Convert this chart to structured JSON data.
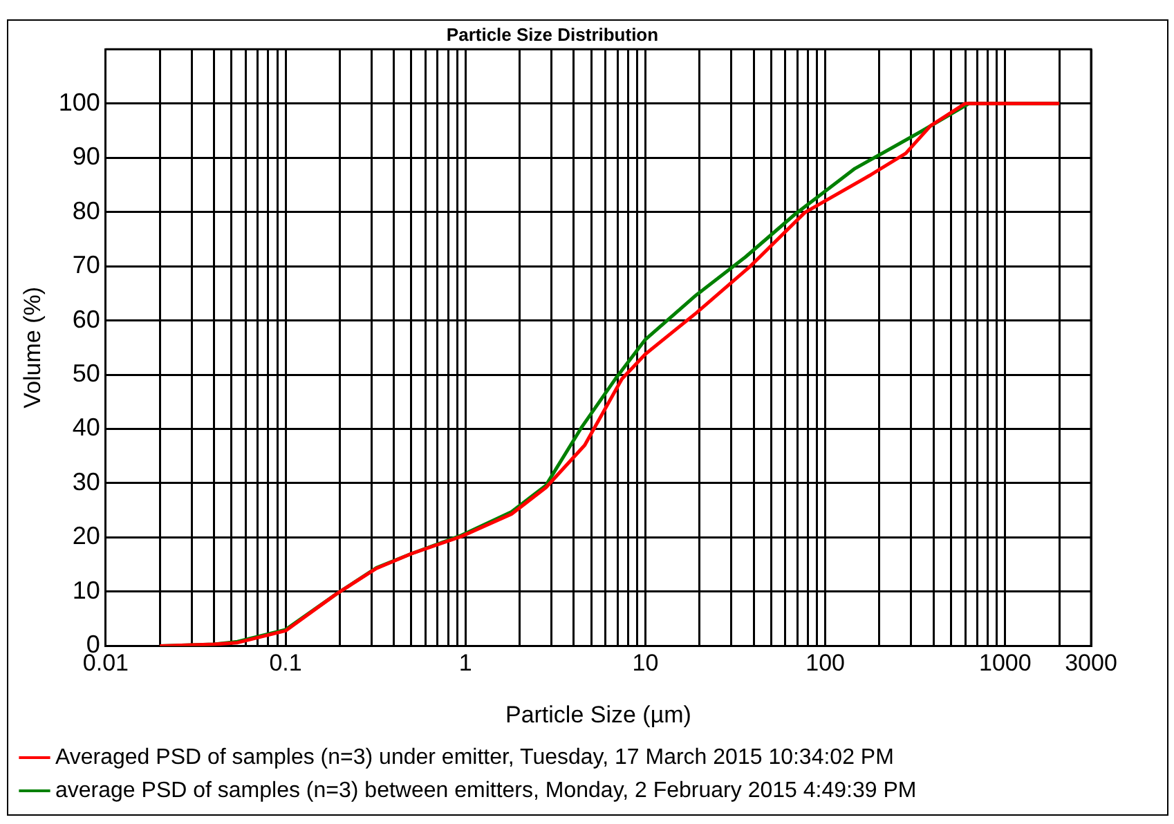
{
  "chart_data": {
    "type": "line",
    "title": "Particle Size Distribution",
    "xlabel": "Particle Size (µm)",
    "ylabel": "Volume (%)",
    "log": "x",
    "grid": true,
    "legend": "bottom",
    "marker": "none",
    "line_style": "solid",
    "xlim": [
      0.01,
      3000
    ],
    "ylim": [
      0,
      110
    ],
    "xticks": [
      0.01,
      {
        "value": 0.02,
        "label": null
      },
      {
        "value": 0.03,
        "label": null
      },
      {
        "value": 0.04,
        "label": null
      },
      {
        "value": 0.05,
        "label": null
      },
      {
        "value": 0.06,
        "label": null
      },
      {
        "value": 0.07,
        "label": null
      },
      {
        "value": 0.08,
        "label": null
      },
      {
        "value": 0.09,
        "label": null
      },
      0.1,
      {
        "value": 0.2,
        "label": null
      },
      {
        "value": 0.3,
        "label": null
      },
      {
        "value": 0.4,
        "label": null
      },
      {
        "value": 0.5,
        "label": null
      },
      {
        "value": 0.6,
        "label": null
      },
      {
        "value": 0.7,
        "label": null
      },
      {
        "value": 0.8,
        "label": null
      },
      {
        "value": 0.9,
        "label": null
      },
      1,
      {
        "value": 2,
        "label": null
      },
      {
        "value": 3,
        "label": null
      },
      {
        "value": 4,
        "label": null
      },
      {
        "value": 5,
        "label": null
      },
      {
        "value": 6,
        "label": null
      },
      {
        "value": 7,
        "label": null
      },
      {
        "value": 8,
        "label": null
      },
      {
        "value": 9,
        "label": null
      },
      10,
      {
        "value": 20,
        "label": null
      },
      {
        "value": 30,
        "label": null
      },
      {
        "value": 40,
        "label": null
      },
      {
        "value": 50,
        "label": null
      },
      {
        "value": 60,
        "label": null
      },
      {
        "value": 70,
        "label": null
      },
      {
        "value": 80,
        "label": null
      },
      {
        "value": 90,
        "label": null
      },
      100,
      {
        "value": 200,
        "label": null
      },
      {
        "value": 300,
        "label": null
      },
      {
        "value": 400,
        "label": null
      },
      {
        "value": 500,
        "label": null
      },
      {
        "value": 600,
        "label": null
      },
      {
        "value": 700,
        "label": null
      },
      {
        "value": 800,
        "label": null
      },
      {
        "value": 900,
        "label": null
      },
      1000,
      {
        "value": 2000,
        "label": null
      },
      3000
    ],
    "yticks": [
      0,
      10,
      20,
      30,
      40,
      50,
      60,
      70,
      80,
      90,
      100
    ],
    "series": [
      {
        "name": "Averaged PSD of samples (n=3) under emitter, Tuesday, 17 March 2015 10:34:02 PM",
        "color": "#ff0000",
        "x": [
          0.02,
          0.04,
          0.054,
          0.1,
          0.19,
          0.32,
          0.5,
          0.95,
          1.8,
          2.8,
          4.6,
          7.4,
          10,
          19.2,
          38.6,
          77,
          176,
          280,
          385,
          600,
          2000
        ],
        "values": [
          0,
          0.3,
          0.6,
          2.8,
          9.5,
          14.3,
          17,
          20.2,
          24.3,
          29.2,
          37,
          49.2,
          53.8,
          61.4,
          70.1,
          79.9,
          86.7,
          90.8,
          95.9,
          100,
          100
        ]
      },
      {
        "name": "average PSD of samples (n=3) between emitters, Monday, 2 February 2015 4:49:39 PM",
        "color": "#008000",
        "x": [
          0.02,
          0.04,
          0.054,
          0.1,
          0.19,
          0.32,
          0.5,
          0.95,
          1.8,
          2.8,
          4.4,
          6.8,
          10,
          19.2,
          36,
          68,
          146,
          339,
          630,
          2000
        ],
        "values": [
          0,
          0.3,
          0.8,
          3,
          9.5,
          14.4,
          17,
          20.4,
          24.7,
          29.6,
          40.2,
          49.2,
          56.5,
          64.7,
          71.7,
          79.6,
          88,
          94.8,
          100,
          100
        ]
      }
    ]
  }
}
